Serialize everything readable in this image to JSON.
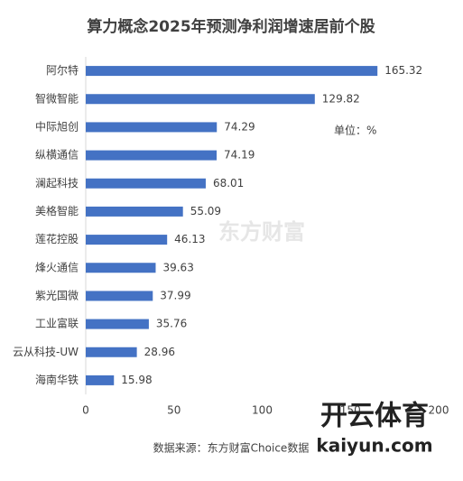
{
  "chart_data": {
    "type": "hbar",
    "title": "算力概念2025年预测净利润增速居前个股",
    "categories": [
      "阿尔特",
      "智微智能",
      "中际旭创",
      "纵横通信",
      "澜起科技",
      "美格智能",
      "莲花控股",
      "烽火通信",
      "紫光国微",
      "工业富联",
      "云从科技-UW",
      "海南华铁"
    ],
    "values": [
      165.32,
      129.82,
      74.29,
      74.19,
      68.01,
      55.09,
      46.13,
      39.63,
      37.99,
      35.76,
      28.96,
      15.98
    ],
    "color": "#4472c4",
    "xlim": [
      0,
      200
    ],
    "xticks": [
      0,
      50,
      100,
      150,
      200
    ],
    "unit_label": "单位：%",
    "source": "数据来源：东方财富Choice数据",
    "watermarks": [
      "东方财富",
      "开云体育",
      "kaiyun.com"
    ]
  }
}
